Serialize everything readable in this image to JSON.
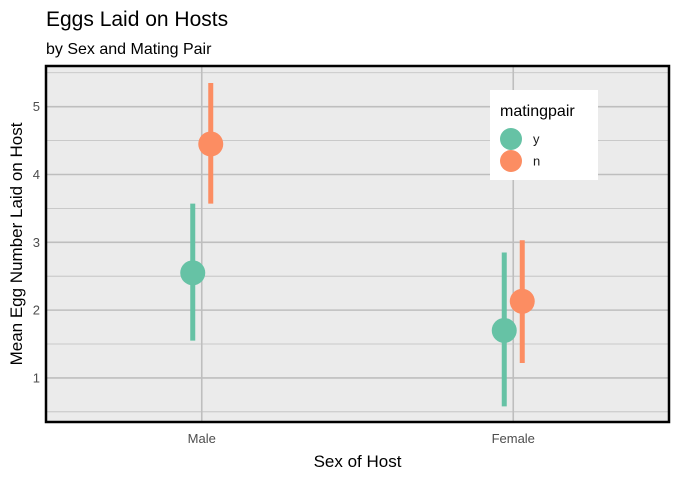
{
  "chart_data": {
    "type": "scatter",
    "subtype": "pointrange",
    "title": "Eggs Laid on Hosts",
    "subtitle": "by Sex and Mating Pair",
    "xlabel": "Sex of Host",
    "ylabel": "Mean Egg Number Laid on Host",
    "categories": [
      "Male",
      "Female"
    ],
    "y_ticks": [
      1,
      2,
      3,
      4,
      5
    ],
    "ylim": [
      0.35,
      5.6
    ],
    "grid": true,
    "legend": {
      "title": "matingpair",
      "position": "top-right-inside"
    },
    "series": [
      {
        "name": "y",
        "color": "#66c2a5",
        "points": [
          {
            "category": "Male",
            "mean": 2.55,
            "lower": 1.55,
            "upper": 3.57
          },
          {
            "category": "Female",
            "mean": 1.7,
            "lower": 0.58,
            "upper": 2.85
          }
        ]
      },
      {
        "name": "n",
        "color": "#fc8d62",
        "points": [
          {
            "category": "Male",
            "mean": 4.45,
            "lower": 3.57,
            "upper": 5.35
          },
          {
            "category": "Female",
            "mean": 2.13,
            "lower": 1.22,
            "upper": 3.03
          }
        ]
      }
    ],
    "colors": {
      "panel_background": "#ebebeb",
      "grid": "#bebebe",
      "panel_border": "#000000"
    }
  }
}
